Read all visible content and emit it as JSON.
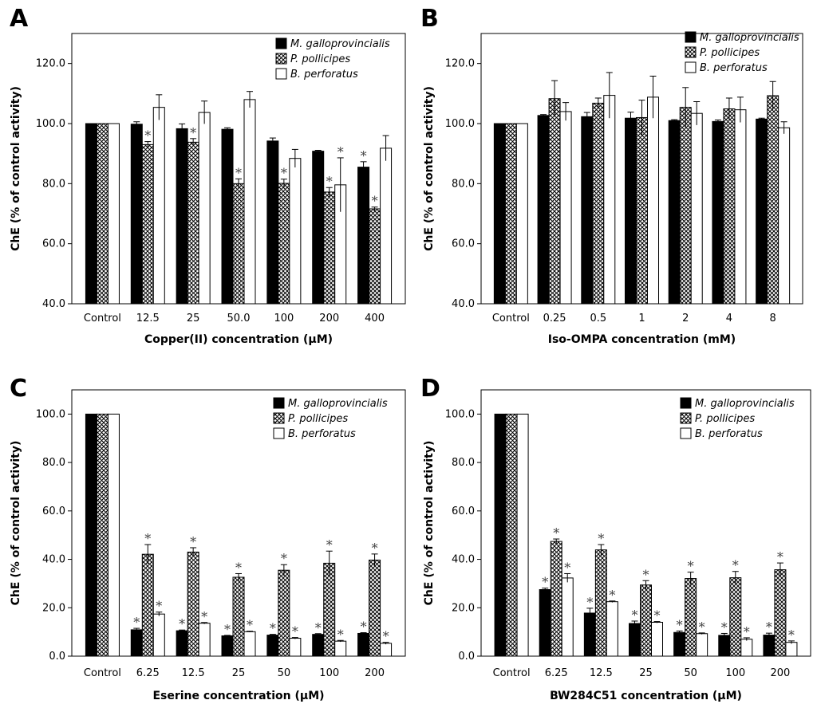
{
  "figure": {
    "series_names": [
      "M. galloprovincialis",
      "P. pollicipes",
      "B. perforatus"
    ],
    "ylabel": "ChE  (% of control activity)",
    "significance_marker": "*"
  },
  "chart_data": [
    {
      "panel": "A",
      "type": "bar",
      "title": "",
      "xlabel": "Copper(II) concentration (μM)",
      "ylabel": "ChE  (% of control activity)",
      "ylim": [
        40,
        130
      ],
      "yticks": [
        40,
        60,
        80,
        100,
        120
      ],
      "ytick_labels": [
        "40.0",
        "60.0",
        "80.0",
        "100.0",
        "120.0"
      ],
      "grid": false,
      "legend": "top-right",
      "categories": [
        "Control",
        "12.5",
        "25",
        "50.0",
        "100",
        "200",
        "400"
      ],
      "series": [
        {
          "name": "M. galloprovincialis",
          "pattern": "solid",
          "values": [
            100,
            99.8,
            98.3,
            98.1,
            94.2,
            90.8,
            85.5
          ],
          "errors": [
            0,
            0.8,
            1.6,
            0.5,
            1.0,
            0.3,
            1.8
          ],
          "sig": [
            false,
            false,
            false,
            false,
            false,
            false,
            true
          ]
        },
        {
          "name": "P. pollicipes",
          "pattern": "crosshatch",
          "values": [
            100,
            93.0,
            93.8,
            80.0,
            80.1,
            77.2,
            71.6
          ],
          "errors": [
            0,
            1.0,
            1.2,
            1.6,
            1.4,
            1.5,
            0.6
          ],
          "sig": [
            false,
            true,
            true,
            true,
            true,
            true,
            true
          ]
        },
        {
          "name": "B. perforatus",
          "pattern": "open",
          "values": [
            100,
            105.4,
            103.7,
            108.0,
            88.4,
            79.6,
            91.8
          ],
          "errors": [
            0,
            4.2,
            3.8,
            2.7,
            3.0,
            9.0,
            4.2
          ],
          "sig": [
            false,
            false,
            false,
            false,
            false,
            true,
            false
          ]
        }
      ]
    },
    {
      "panel": "B",
      "type": "bar",
      "title": "",
      "xlabel": "Iso-OMPA concentration (mM)",
      "ylabel": "ChE  (% of control activity)",
      "ylim": [
        40,
        130
      ],
      "yticks": [
        40,
        60,
        80,
        100,
        120
      ],
      "ytick_labels": [
        "40.0",
        "60.0",
        "80.0",
        "100.0",
        "120.0"
      ],
      "grid": false,
      "legend": "top-right",
      "categories": [
        "Control",
        "0.25",
        "0.5",
        "1",
        "2",
        "4",
        "8"
      ],
      "series": [
        {
          "name": "M. galloprovincialis",
          "pattern": "solid",
          "values": [
            100,
            102.7,
            102.3,
            101.8,
            101.0,
            100.7,
            101.5
          ],
          "errors": [
            0,
            0.3,
            1.4,
            2.0,
            0.3,
            0.5,
            0.3
          ],
          "sig": [
            false,
            false,
            false,
            false,
            false,
            false,
            false
          ]
        },
        {
          "name": "P. pollicipes",
          "pattern": "crosshatch",
          "values": [
            100,
            108.3,
            106.8,
            102.0,
            105.4,
            104.9,
            109.3
          ],
          "errors": [
            0,
            6.0,
            1.7,
            5.8,
            6.6,
            3.6,
            4.7
          ],
          "sig": [
            false,
            false,
            false,
            false,
            false,
            false,
            false
          ]
        },
        {
          "name": "B. perforatus",
          "pattern": "open",
          "values": [
            100,
            104.0,
            109.4,
            108.8,
            103.4,
            104.6,
            98.6
          ],
          "errors": [
            0,
            3.0,
            7.6,
            7.0,
            3.9,
            4.2,
            2.0
          ],
          "sig": [
            false,
            false,
            false,
            false,
            false,
            false,
            false
          ]
        }
      ]
    },
    {
      "panel": "C",
      "type": "bar",
      "title": "",
      "xlabel": "Eserine concentration (μM)",
      "ylabel": "ChE  (% of control activity)",
      "ylim": [
        0,
        110
      ],
      "yticks": [
        0,
        20,
        40,
        60,
        80,
        100
      ],
      "ytick_labels": [
        "0.0",
        "20.0",
        "40.0",
        "60.0",
        "80.0",
        "100.0"
      ],
      "grid": false,
      "legend": "top-right",
      "categories": [
        "Control",
        "6.25",
        "12.5",
        "25",
        "50",
        "100",
        "200"
      ],
      "series": [
        {
          "name": "M. galloprovincialis",
          "pattern": "solid",
          "values": [
            100,
            10.9,
            10.5,
            8.4,
            8.7,
            9.0,
            9.4
          ],
          "errors": [
            0,
            0.6,
            0.3,
            0.2,
            0.3,
            0.3,
            0.3
          ],
          "sig": [
            false,
            true,
            true,
            true,
            true,
            true,
            true
          ]
        },
        {
          "name": "P. pollicipes",
          "pattern": "crosshatch",
          "values": [
            100,
            42.1,
            43.0,
            32.6,
            35.5,
            38.4,
            39.7
          ],
          "errors": [
            0,
            4.0,
            1.8,
            1.5,
            2.3,
            5.0,
            2.5
          ],
          "sig": [
            false,
            true,
            true,
            true,
            true,
            true,
            true
          ]
        },
        {
          "name": "B. perforatus",
          "pattern": "open",
          "values": [
            100,
            17.4,
            13.6,
            10.1,
            7.4,
            6.2,
            5.3
          ],
          "errors": [
            0,
            0.8,
            0.3,
            0.2,
            0.3,
            0.3,
            0.4
          ],
          "sig": [
            false,
            true,
            true,
            true,
            true,
            true,
            true
          ]
        }
      ]
    },
    {
      "panel": "D",
      "type": "bar",
      "title": "",
      "xlabel": "BW284C51 concentration (μM)",
      "ylabel": "ChE  (% of control activity)",
      "ylim": [
        0,
        110
      ],
      "yticks": [
        0,
        20,
        40,
        60,
        80,
        100
      ],
      "ytick_labels": [
        "0.0",
        "20.0",
        "40.0",
        "60.0",
        "80.0",
        "100.0"
      ],
      "grid": false,
      "legend": "top-right",
      "categories": [
        "Control",
        "6.25",
        "12.5",
        "25",
        "50",
        "100",
        "200"
      ],
      "series": [
        {
          "name": "M. galloprovincialis",
          "pattern": "solid",
          "values": [
            100,
            27.5,
            17.8,
            13.5,
            9.8,
            8.6,
            8.7
          ],
          "errors": [
            0,
            0.6,
            2.0,
            1.0,
            0.6,
            0.8,
            0.8
          ],
          "sig": [
            false,
            true,
            true,
            true,
            true,
            true,
            true
          ]
        },
        {
          "name": "P. pollicipes",
          "pattern": "crosshatch",
          "values": [
            100,
            47.4,
            43.9,
            29.4,
            32.1,
            32.4,
            35.7
          ],
          "errors": [
            0,
            1.0,
            2.2,
            1.8,
            2.6,
            2.6,
            2.8
          ],
          "sig": [
            false,
            true,
            true,
            true,
            true,
            true,
            true
          ]
        },
        {
          "name": "B. perforatus",
          "pattern": "open",
          "values": [
            100,
            32.3,
            22.5,
            14.0,
            9.3,
            7.0,
            5.7
          ],
          "errors": [
            0,
            1.8,
            0.3,
            0.3,
            0.3,
            0.6,
            0.6
          ],
          "sig": [
            false,
            true,
            true,
            true,
            true,
            true,
            true
          ]
        }
      ]
    }
  ]
}
